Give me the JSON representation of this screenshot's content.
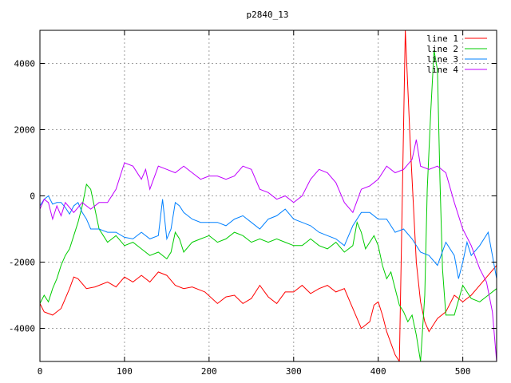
{
  "chart_data": {
    "type": "line",
    "title": "p2840_13",
    "xlabel": "",
    "ylabel": "",
    "xlim": [
      0,
      540
    ],
    "ylim": [
      -5000,
      5000
    ],
    "x_ticks": [
      0,
      100,
      200,
      300,
      400,
      500
    ],
    "y_ticks": [
      -4000,
      -2000,
      0,
      2000,
      4000
    ],
    "grid": true,
    "legend_position": "top-right",
    "series": [
      {
        "name": "line 1",
        "color": "#ff0000",
        "points": [
          [
            0,
            -3250
          ],
          [
            5,
            -3500
          ],
          [
            15,
            -3600
          ],
          [
            25,
            -3400
          ],
          [
            35,
            -2800
          ],
          [
            40,
            -2450
          ],
          [
            45,
            -2500
          ],
          [
            55,
            -2800
          ],
          [
            65,
            -2750
          ],
          [
            80,
            -2600
          ],
          [
            90,
            -2750
          ],
          [
            100,
            -2450
          ],
          [
            110,
            -2600
          ],
          [
            120,
            -2400
          ],
          [
            130,
            -2600
          ],
          [
            140,
            -2300
          ],
          [
            150,
            -2400
          ],
          [
            160,
            -2700
          ],
          [
            170,
            -2800
          ],
          [
            180,
            -2750
          ],
          [
            195,
            -2900
          ],
          [
            210,
            -3250
          ],
          [
            220,
            -3050
          ],
          [
            230,
            -3000
          ],
          [
            240,
            -3250
          ],
          [
            250,
            -3100
          ],
          [
            260,
            -2700
          ],
          [
            270,
            -3050
          ],
          [
            280,
            -3250
          ],
          [
            290,
            -2900
          ],
          [
            300,
            -2900
          ],
          [
            310,
            -2700
          ],
          [
            320,
            -2950
          ],
          [
            330,
            -2800
          ],
          [
            340,
            -2700
          ],
          [
            350,
            -2900
          ],
          [
            360,
            -2800
          ],
          [
            370,
            -3400
          ],
          [
            380,
            -4000
          ],
          [
            390,
            -3800
          ],
          [
            395,
            -3300
          ],
          [
            400,
            -3200
          ],
          [
            405,
            -3600
          ],
          [
            410,
            -4100
          ],
          [
            420,
            -4800
          ],
          [
            425,
            -5000
          ],
          [
            432,
            5000
          ],
          [
            438,
            1500
          ],
          [
            445,
            -2000
          ],
          [
            450,
            -3200
          ],
          [
            455,
            -3800
          ],
          [
            460,
            -4100
          ],
          [
            470,
            -3700
          ],
          [
            480,
            -3500
          ],
          [
            490,
            -3000
          ],
          [
            500,
            -3200
          ],
          [
            510,
            -3000
          ],
          [
            520,
            -2700
          ],
          [
            530,
            -2400
          ],
          [
            540,
            -2100
          ]
        ]
      },
      {
        "name": "line 2",
        "color": "#00cc00",
        "points": [
          [
            0,
            -3250
          ],
          [
            5,
            -3000
          ],
          [
            10,
            -3200
          ],
          [
            15,
            -2800
          ],
          [
            20,
            -2500
          ],
          [
            25,
            -2100
          ],
          [
            30,
            -1800
          ],
          [
            35,
            -1600
          ],
          [
            40,
            -1200
          ],
          [
            45,
            -800
          ],
          [
            50,
            -300
          ],
          [
            55,
            350
          ],
          [
            60,
            200
          ],
          [
            65,
            -400
          ],
          [
            70,
            -1000
          ],
          [
            75,
            -1200
          ],
          [
            80,
            -1400
          ],
          [
            90,
            -1200
          ],
          [
            100,
            -1500
          ],
          [
            110,
            -1400
          ],
          [
            120,
            -1600
          ],
          [
            130,
            -1800
          ],
          [
            140,
            -1700
          ],
          [
            150,
            -1900
          ],
          [
            155,
            -1700
          ],
          [
            160,
            -1100
          ],
          [
            165,
            -1300
          ],
          [
            170,
            -1700
          ],
          [
            180,
            -1400
          ],
          [
            190,
            -1300
          ],
          [
            200,
            -1200
          ],
          [
            210,
            -1400
          ],
          [
            220,
            -1300
          ],
          [
            230,
            -1100
          ],
          [
            240,
            -1200
          ],
          [
            250,
            -1400
          ],
          [
            260,
            -1300
          ],
          [
            270,
            -1400
          ],
          [
            280,
            -1300
          ],
          [
            290,
            -1400
          ],
          [
            300,
            -1500
          ],
          [
            310,
            -1500
          ],
          [
            320,
            -1300
          ],
          [
            330,
            -1500
          ],
          [
            340,
            -1600
          ],
          [
            350,
            -1400
          ],
          [
            360,
            -1700
          ],
          [
            370,
            -1500
          ],
          [
            375,
            -800
          ],
          [
            380,
            -1100
          ],
          [
            385,
            -1600
          ],
          [
            390,
            -1400
          ],
          [
            395,
            -1200
          ],
          [
            400,
            -1500
          ],
          [
            405,
            -2100
          ],
          [
            410,
            -2500
          ],
          [
            415,
            -2300
          ],
          [
            420,
            -2800
          ],
          [
            425,
            -3300
          ],
          [
            430,
            -3500
          ],
          [
            435,
            -3800
          ],
          [
            440,
            -3600
          ],
          [
            445,
            -4200
          ],
          [
            450,
            -5000
          ],
          [
            455,
            -3000
          ],
          [
            458,
            200
          ],
          [
            462,
            2500
          ],
          [
            466,
            4400
          ],
          [
            470,
            3800
          ],
          [
            473,
            500
          ],
          [
            476,
            -2200
          ],
          [
            480,
            -3600
          ],
          [
            490,
            -3600
          ],
          [
            500,
            -2700
          ],
          [
            510,
            -3100
          ],
          [
            520,
            -3200
          ],
          [
            530,
            -3000
          ],
          [
            540,
            -2800
          ]
        ]
      },
      {
        "name": "line 3",
        "color": "#0080ff",
        "points": [
          [
            0,
            -300
          ],
          [
            5,
            -100
          ],
          [
            10,
            0
          ],
          [
            15,
            -250
          ],
          [
            20,
            -200
          ],
          [
            25,
            -200
          ],
          [
            30,
            -350
          ],
          [
            35,
            -550
          ],
          [
            40,
            -300
          ],
          [
            45,
            -200
          ],
          [
            50,
            -500
          ],
          [
            55,
            -700
          ],
          [
            60,
            -1000
          ],
          [
            70,
            -1000
          ],
          [
            80,
            -1100
          ],
          [
            90,
            -1100
          ],
          [
            100,
            -1250
          ],
          [
            110,
            -1300
          ],
          [
            120,
            -1100
          ],
          [
            130,
            -1300
          ],
          [
            140,
            -1200
          ],
          [
            145,
            -100
          ],
          [
            150,
            -1300
          ],
          [
            155,
            -1000
          ],
          [
            160,
            -200
          ],
          [
            165,
            -300
          ],
          [
            170,
            -500
          ],
          [
            180,
            -700
          ],
          [
            190,
            -800
          ],
          [
            200,
            -800
          ],
          [
            210,
            -800
          ],
          [
            220,
            -900
          ],
          [
            230,
            -700
          ],
          [
            240,
            -600
          ],
          [
            250,
            -800
          ],
          [
            260,
            -1000
          ],
          [
            270,
            -700
          ],
          [
            280,
            -600
          ],
          [
            290,
            -400
          ],
          [
            300,
            -700
          ],
          [
            310,
            -800
          ],
          [
            320,
            -900
          ],
          [
            330,
            -1100
          ],
          [
            340,
            -1200
          ],
          [
            350,
            -1300
          ],
          [
            360,
            -1500
          ],
          [
            365,
            -1200
          ],
          [
            370,
            -900
          ],
          [
            380,
            -500
          ],
          [
            390,
            -500
          ],
          [
            400,
            -700
          ],
          [
            410,
            -700
          ],
          [
            420,
            -1100
          ],
          [
            430,
            -1000
          ],
          [
            440,
            -1300
          ],
          [
            450,
            -1700
          ],
          [
            460,
            -1800
          ],
          [
            470,
            -2100
          ],
          [
            480,
            -1400
          ],
          [
            490,
            -1800
          ],
          [
            495,
            -2500
          ],
          [
            500,
            -2000
          ],
          [
            505,
            -1400
          ],
          [
            510,
            -1800
          ],
          [
            520,
            -1500
          ],
          [
            530,
            -1100
          ],
          [
            540,
            -2500
          ]
        ]
      },
      {
        "name": "line 4",
        "color": "#c000ff",
        "points": [
          [
            0,
            -400
          ],
          [
            5,
            -100
          ],
          [
            10,
            -200
          ],
          [
            15,
            -700
          ],
          [
            20,
            -300
          ],
          [
            25,
            -600
          ],
          [
            30,
            -200
          ],
          [
            40,
            -500
          ],
          [
            50,
            -200
          ],
          [
            60,
            -400
          ],
          [
            70,
            -200
          ],
          [
            80,
            -200
          ],
          [
            90,
            200
          ],
          [
            100,
            1000
          ],
          [
            110,
            900
          ],
          [
            120,
            500
          ],
          [
            125,
            800
          ],
          [
            130,
            200
          ],
          [
            140,
            900
          ],
          [
            150,
            800
          ],
          [
            160,
            700
          ],
          [
            170,
            900
          ],
          [
            180,
            700
          ],
          [
            190,
            500
          ],
          [
            200,
            600
          ],
          [
            210,
            600
          ],
          [
            220,
            500
          ],
          [
            230,
            600
          ],
          [
            240,
            900
          ],
          [
            250,
            800
          ],
          [
            260,
            200
          ],
          [
            270,
            100
          ],
          [
            280,
            -100
          ],
          [
            290,
            0
          ],
          [
            300,
            -200
          ],
          [
            310,
            0
          ],
          [
            320,
            500
          ],
          [
            330,
            800
          ],
          [
            340,
            700
          ],
          [
            350,
            400
          ],
          [
            360,
            -200
          ],
          [
            370,
            -500
          ],
          [
            380,
            200
          ],
          [
            390,
            300
          ],
          [
            400,
            500
          ],
          [
            410,
            900
          ],
          [
            420,
            700
          ],
          [
            430,
            800
          ],
          [
            440,
            1100
          ],
          [
            445,
            1700
          ],
          [
            450,
            900
          ],
          [
            460,
            800
          ],
          [
            470,
            900
          ],
          [
            480,
            700
          ],
          [
            490,
            -200
          ],
          [
            500,
            -1000
          ],
          [
            510,
            -1500
          ],
          [
            520,
            -2200
          ],
          [
            528,
            -2600
          ],
          [
            535,
            -3500
          ],
          [
            540,
            -5000
          ]
        ]
      }
    ]
  }
}
